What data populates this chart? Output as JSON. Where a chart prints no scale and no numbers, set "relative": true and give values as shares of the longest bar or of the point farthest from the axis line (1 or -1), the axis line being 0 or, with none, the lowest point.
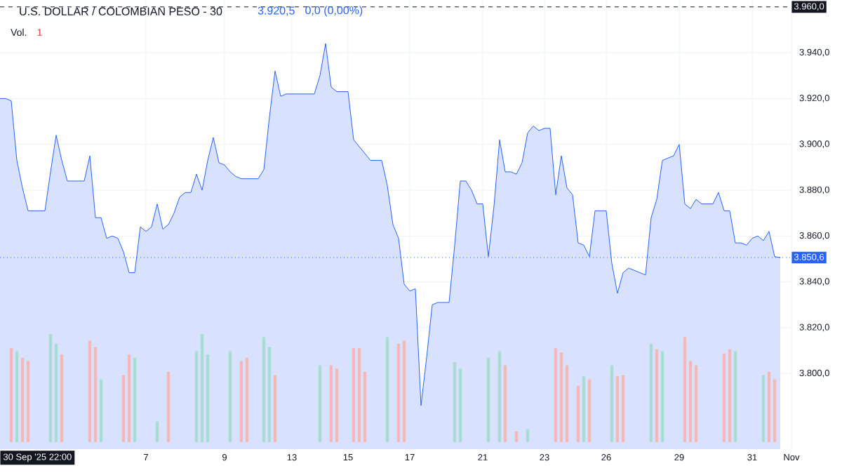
{
  "chart_data": [
    {
      "type": "area",
      "title": "U.S. DOLLAR / COLOMBIAN PESO - 30",
      "annotations": [
        "3.920,5",
        "0,0 (0,00%)",
        "30 Sep '25 22:00"
      ],
      "categories": [
        null,
        null,
        null,
        null,
        null,
        null,
        null,
        null,
        null,
        null,
        null,
        null,
        null,
        null,
        null,
        null,
        null,
        null,
        null,
        null,
        null,
        null,
        null,
        null,
        null,
        null,
        "7",
        null,
        null,
        null,
        null,
        null,
        null,
        null,
        null,
        null,
        null,
        null,
        null,
        null,
        "9",
        null,
        null,
        null,
        null,
        null,
        null,
        null,
        null,
        null,
        null,
        null,
        "13",
        null,
        null,
        null,
        null,
        null,
        null,
        null,
        null,
        null,
        "15",
        null,
        null,
        null,
        null,
        null,
        null,
        null,
        null,
        null,
        null,
        "17",
        null,
        null,
        null,
        null,
        null,
        null,
        null,
        null,
        null,
        null,
        null,
        null,
        "21",
        null,
        null,
        null,
        null,
        null,
        null,
        null,
        null,
        null,
        null,
        "23",
        null,
        null,
        null,
        null,
        null,
        null,
        null,
        null,
        null,
        null,
        "26",
        null,
        null,
        null,
        null,
        null,
        null,
        null,
        null,
        null,
        null,
        null,
        null,
        "29",
        null,
        null,
        null,
        null,
        null,
        null,
        null,
        null,
        null,
        null,
        null,
        null,
        "31",
        null,
        null,
        null,
        null,
        null,
        null,
        "Nov"
      ],
      "series": [
        {
          "color": "#2962ff",
          "values": [
            3920,
            3920,
            3919,
            3893,
            3881,
            3871,
            3871,
            3871,
            3871,
            3888,
            3904,
            3893,
            3884,
            3884,
            3884,
            3884,
            3895,
            3868,
            3868,
            3859,
            3860,
            3859,
            3853,
            3844,
            3844,
            3864,
            3862,
            3864,
            3874,
            3863,
            3865,
            3870,
            3877,
            3879,
            3879,
            3887,
            3880,
            3893,
            3903,
            3892,
            3891,
            3888,
            3886,
            3885,
            3885,
            3885,
            3885,
            3889,
            3912,
            3932,
            3921,
            3922,
            3922,
            3922,
            3922,
            3922,
            3922,
            3930,
            3944,
            3925,
            3923,
            3923,
            3923,
            3902,
            3899,
            3896,
            3893,
            3893,
            3893,
            3882,
            3865,
            3859,
            3839,
            3836,
            3837,
            3786,
            3807,
            3830,
            3831,
            3831,
            3831,
            3856,
            3884,
            3884,
            3880,
            3874,
            3874,
            3851,
            3873,
            3902,
            3888,
            3888,
            3887,
            3892,
            3905,
            3908,
            3906,
            3907,
            3907,
            3878,
            3895,
            3881,
            3878,
            3857,
            3856,
            3851,
            3871,
            3871,
            3871,
            3848,
            3835,
            3844,
            3846,
            3845,
            3844,
            3843,
            3868,
            3876,
            3893,
            3894,
            3895,
            3900,
            3874,
            3872,
            3876,
            3874,
            3874,
            3874,
            3879,
            3871,
            3871,
            3857,
            3857,
            3856,
            3859,
            3860,
            3858,
            3862,
            3851,
            3850.6,
            null,
            null
          ]
        }
      ],
      "ylim": [
        3767,
        3963
      ],
      "yticks": [
        {
          "value": 3800,
          "label": "3.800,0"
        },
        {
          "value": 3820,
          "label": "3.820,0"
        },
        {
          "value": 3840,
          "label": "3.840,0"
        },
        {
          "value": 3860,
          "label": "3.860,0"
        },
        {
          "value": 3880,
          "label": "3.880,0"
        },
        {
          "value": 3900,
          "label": "3.900,0"
        },
        {
          "value": 3920,
          "label": "3.920,0"
        },
        {
          "value": 3940,
          "label": "3.940,0"
        }
      ],
      "grid": true,
      "ref_lines": [
        {
          "axis": "y",
          "value": 3960,
          "label": "3.960,0",
          "color": "#131722",
          "line_style": "dashed"
        },
        {
          "axis": "y",
          "value": 3850.6,
          "label": "3.850,6",
          "color": "#2962ff",
          "line_style": "dotted"
        }
      ]
    },
    {
      "type": "bar",
      "relative": true,
      "title": "Vol.",
      "annotations": [
        "1"
      ],
      "tick_labels": false,
      "categories": [
        null,
        null,
        null,
        null,
        null,
        null,
        null,
        null,
        null,
        null,
        null,
        null,
        null,
        null,
        null,
        null,
        null,
        null,
        null,
        null,
        null,
        null,
        null,
        null,
        null,
        null,
        null,
        null,
        null,
        null,
        null,
        null,
        null,
        null,
        null,
        null,
        null,
        null,
        null,
        null,
        null,
        null,
        null,
        null,
        null,
        null,
        null,
        null,
        null,
        null,
        null,
        null,
        null,
        null,
        null,
        null,
        null,
        null,
        null,
        null,
        null,
        null,
        null,
        null,
        null,
        null,
        null,
        null,
        null,
        null,
        null,
        null,
        null,
        null,
        null,
        null,
        null,
        null,
        null,
        null,
        null,
        null,
        null,
        null,
        null,
        null,
        null,
        null,
        null,
        null,
        null,
        null,
        null,
        null,
        null,
        null,
        null,
        null,
        null,
        null,
        null,
        null,
        null,
        null,
        null,
        null,
        null,
        null,
        null,
        null,
        null,
        null,
        null,
        null,
        null,
        null,
        null,
        null,
        null,
        null,
        null,
        null,
        null,
        null,
        null,
        null,
        null,
        null,
        null,
        null,
        null,
        null,
        null,
        null,
        null,
        null,
        null,
        null,
        null,
        null,
        null,
        null
      ],
      "values": [
        null,
        null,
        0.87,
        0.84,
        0.78,
        0.75,
        null,
        null,
        null,
        1,
        0.91,
        0.81,
        null,
        null,
        null,
        null,
        0.94,
        0.88,
        0.58,
        null,
        null,
        null,
        0.62,
        0.81,
        0.78,
        null,
        null,
        null,
        0.19,
        null,
        0.65,
        null,
        null,
        null,
        null,
        0.84,
        1,
        0.81,
        null,
        null,
        null,
        0.84,
        null,
        0.75,
        0.78,
        null,
        null,
        0.97,
        0.88,
        0.62,
        null,
        null,
        null,
        null,
        null,
        null,
        null,
        0.71,
        null,
        0.71,
        0.68,
        null,
        null,
        0.87,
        0.87,
        0.65,
        null,
        null,
        null,
        0.97,
        null,
        0.91,
        0.94,
        null,
        null,
        null,
        null,
        null,
        null,
        null,
        null,
        0.74,
        0.68,
        null,
        null,
        null,
        null,
        0.78,
        null,
        0.84,
        0.71,
        null,
        0.1,
        null,
        0.12,
        null,
        null,
        null,
        null,
        0.87,
        0.83,
        0.71,
        null,
        0.52,
        0.61,
        0.58,
        null,
        null,
        null,
        0.71,
        0.61,
        0.62,
        null,
        null,
        null,
        null,
        0.91,
        0.86,
        0.84,
        null,
        null,
        null,
        0.97,
        0.75,
        0.71,
        null,
        null,
        null,
        null,
        0.82,
        0.86,
        0.84,
        null,
        null,
        null,
        null,
        0.62,
        0.65,
        0.58,
        null,
        null,
        null
      ],
      "colors": [
        null,
        null,
        "#f5b8b8",
        "#a9dcd2",
        "#f5b8b8",
        "#f5b8b8",
        null,
        null,
        null,
        "#a9dcd2",
        "#a9dcd2",
        "#f5b8b8",
        null,
        null,
        null,
        null,
        "#f5b8b8",
        "#f5b8b8",
        "#a9dcd2",
        null,
        null,
        null,
        "#f5b8b8",
        "#f5b8b8",
        "#a9dcd2",
        null,
        null,
        null,
        "#a9dcd2",
        null,
        "#f5b8b8",
        null,
        null,
        null,
        null,
        "#a9dcd2",
        "#a9dcd2",
        "#a9dcd2",
        null,
        null,
        null,
        "#a9dcd2",
        null,
        "#f5b8b8",
        "#f5b8b8",
        null,
        null,
        "#a9dcd2",
        "#a9dcd2",
        "#f5b8b8",
        null,
        null,
        null,
        null,
        null,
        null,
        null,
        "#a9dcd2",
        null,
        "#f5b8b8",
        "#f5b8b8",
        null,
        null,
        "#f5b8b8",
        "#f5b8b8",
        "#f5b8b8",
        null,
        null,
        null,
        "#a9dcd2",
        null,
        "#f5b8b8",
        "#f5b8b8",
        null,
        null,
        null,
        null,
        null,
        null,
        null,
        null,
        "#a9dcd2",
        "#a9dcd2",
        null,
        null,
        null,
        null,
        "#a9dcd2",
        null,
        "#a9dcd2",
        "#f5b8b8",
        null,
        "#f5b8b8",
        null,
        "#a9dcd2",
        null,
        null,
        null,
        null,
        "#f5b8b8",
        "#f5b8b8",
        "#f5b8b8",
        null,
        "#f5b8b8",
        "#a9dcd2",
        "#f5b8b8",
        null,
        null,
        null,
        "#a9dcd2",
        "#f5b8b8",
        "#f5b8b8",
        null,
        null,
        null,
        null,
        "#a9dcd2",
        "#f5b8b8",
        "#a9dcd2",
        null,
        null,
        null,
        "#f5b8b8",
        "#f5b8b8",
        "#f5b8b8",
        null,
        null,
        null,
        null,
        "#f5b8b8",
        "#f5b8b8",
        "#a9dcd2",
        null,
        null,
        null,
        null,
        "#a9dcd2",
        "#f5b8b8",
        "#f5b8b8",
        null,
        null,
        null
      ]
    }
  ]
}
